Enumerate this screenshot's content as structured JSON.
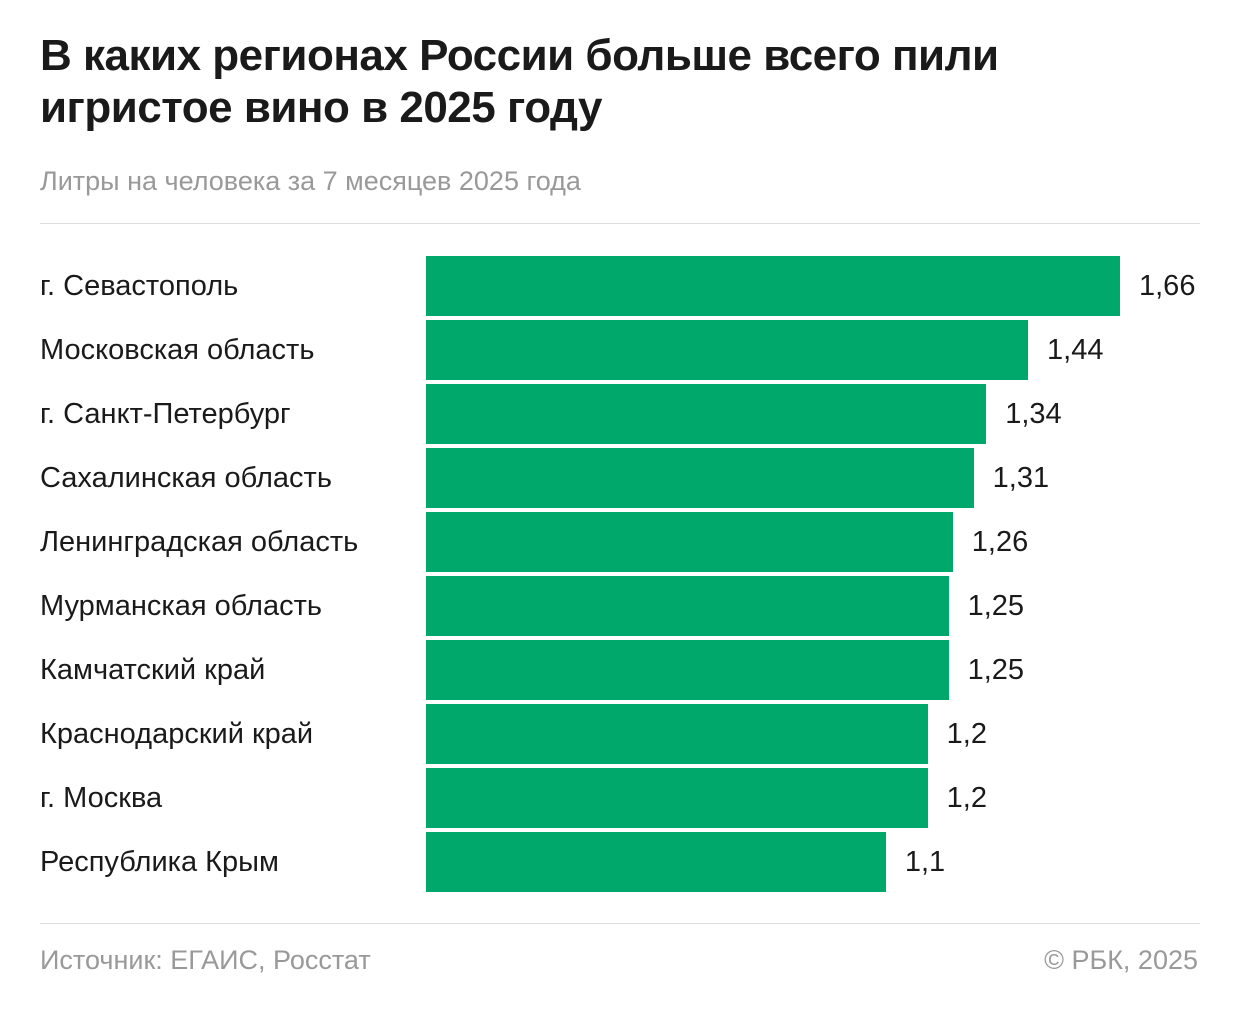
{
  "chart_data": {
    "type": "bar",
    "orientation": "horizontal",
    "title": "В каких регионах России больше всего пили игристое вино в 2025 году",
    "subtitle": "Литры на человека за 7 месяцев 2025 года",
    "categories": [
      "г. Севастополь",
      "Московская область",
      "г. Санкт-Петербург",
      "Сахалинская область",
      "Ленинградская область",
      "Мурманская область",
      "Камчатский край",
      "Краснодарский край",
      "г. Москва",
      "Республика Крым"
    ],
    "values": [
      1.66,
      1.44,
      1.34,
      1.31,
      1.26,
      1.25,
      1.25,
      1.2,
      1.2,
      1.1
    ],
    "value_labels": [
      "1,66",
      "1,44",
      "1,34",
      "1,31",
      "1,26",
      "1,25",
      "1,25",
      "1,2",
      "1,2",
      "1,1"
    ],
    "xlim": [
      0,
      1.66
    ],
    "grid": false,
    "bar_color": "#00a86b"
  },
  "footer": {
    "source": "Источник: ЕГАИС, Росстат",
    "copyright": "© РБК, 2025"
  }
}
